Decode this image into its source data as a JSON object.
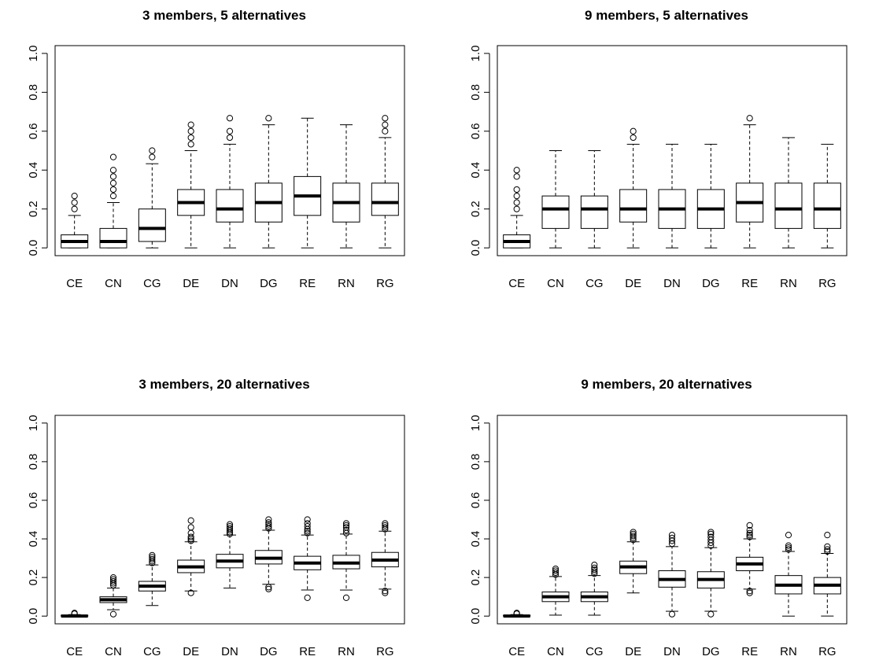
{
  "chart_data": [
    {
      "type": "boxplot",
      "title": "3 members, 5 alternatives",
      "xlabel": "",
      "ylabel": "",
      "ylim": [
        0,
        1
      ],
      "yticks": [
        "0.0",
        "0.2",
        "0.4",
        "0.6",
        "0.8",
        "1.0"
      ],
      "grid": false,
      "categories": [
        "CE",
        "CN",
        "CG",
        "DE",
        "DN",
        "DG",
        "RE",
        "RN",
        "RG"
      ],
      "boxes": [
        {
          "whisker_low": 0.0,
          "q1": 0.0,
          "median": 0.033,
          "q3": 0.067,
          "whisker_high": 0.167,
          "outliers": [
            0.2,
            0.233,
            0.267
          ]
        },
        {
          "whisker_low": 0.0,
          "q1": 0.0,
          "median": 0.033,
          "q3": 0.1,
          "whisker_high": 0.233,
          "outliers": [
            0.267,
            0.3,
            0.333,
            0.367,
            0.4,
            0.467
          ]
        },
        {
          "whisker_low": 0.0,
          "q1": 0.033,
          "median": 0.1,
          "q3": 0.2,
          "whisker_high": 0.433,
          "outliers": [
            0.467,
            0.5
          ]
        },
        {
          "whisker_low": 0.0,
          "q1": 0.167,
          "median": 0.233,
          "q3": 0.3,
          "whisker_high": 0.5,
          "outliers": [
            0.533,
            0.567,
            0.6,
            0.633
          ]
        },
        {
          "whisker_low": 0.0,
          "q1": 0.133,
          "median": 0.2,
          "q3": 0.3,
          "whisker_high": 0.533,
          "outliers": [
            0.567,
            0.6,
            0.667
          ]
        },
        {
          "whisker_low": 0.0,
          "q1": 0.133,
          "median": 0.233,
          "q3": 0.333,
          "whisker_high": 0.633,
          "outliers": [
            0.667
          ]
        },
        {
          "whisker_low": 0.0,
          "q1": 0.167,
          "median": 0.267,
          "q3": 0.367,
          "whisker_high": 0.667,
          "outliers": []
        },
        {
          "whisker_low": 0.0,
          "q1": 0.133,
          "median": 0.233,
          "q3": 0.333,
          "whisker_high": 0.633,
          "outliers": []
        },
        {
          "whisker_low": 0.0,
          "q1": 0.167,
          "median": 0.233,
          "q3": 0.333,
          "whisker_high": 0.567,
          "outliers": [
            0.6,
            0.633,
            0.667
          ]
        }
      ]
    },
    {
      "type": "boxplot",
      "title": "9 members, 5 alternatives",
      "xlabel": "",
      "ylabel": "",
      "ylim": [
        0,
        1
      ],
      "yticks": [
        "0.0",
        "0.2",
        "0.4",
        "0.6",
        "0.8",
        "1.0"
      ],
      "grid": false,
      "categories": [
        "CE",
        "CN",
        "CG",
        "DE",
        "DN",
        "DG",
        "RE",
        "RN",
        "RG"
      ],
      "boxes": [
        {
          "whisker_low": 0.0,
          "q1": 0.0,
          "median": 0.033,
          "q3": 0.067,
          "whisker_high": 0.167,
          "outliers": [
            0.2,
            0.233,
            0.267,
            0.3,
            0.367,
            0.4
          ]
        },
        {
          "whisker_low": 0.0,
          "q1": 0.1,
          "median": 0.2,
          "q3": 0.267,
          "whisker_high": 0.5,
          "outliers": []
        },
        {
          "whisker_low": 0.0,
          "q1": 0.1,
          "median": 0.2,
          "q3": 0.267,
          "whisker_high": 0.5,
          "outliers": []
        },
        {
          "whisker_low": 0.0,
          "q1": 0.133,
          "median": 0.2,
          "q3": 0.3,
          "whisker_high": 0.533,
          "outliers": [
            0.567,
            0.6
          ]
        },
        {
          "whisker_low": 0.0,
          "q1": 0.1,
          "median": 0.2,
          "q3": 0.3,
          "whisker_high": 0.533,
          "outliers": []
        },
        {
          "whisker_low": 0.0,
          "q1": 0.1,
          "median": 0.2,
          "q3": 0.3,
          "whisker_high": 0.533,
          "outliers": []
        },
        {
          "whisker_low": 0.0,
          "q1": 0.133,
          "median": 0.233,
          "q3": 0.333,
          "whisker_high": 0.633,
          "outliers": [
            0.667
          ]
        },
        {
          "whisker_low": 0.0,
          "q1": 0.1,
          "median": 0.2,
          "q3": 0.333,
          "whisker_high": 0.567,
          "outliers": []
        },
        {
          "whisker_low": 0.0,
          "q1": 0.1,
          "median": 0.2,
          "q3": 0.333,
          "whisker_high": 0.533,
          "outliers": []
        }
      ]
    },
    {
      "type": "boxplot",
      "title": "3 members, 20 alternatives",
      "xlabel": "",
      "ylabel": "",
      "ylim": [
        0,
        1
      ],
      "yticks": [
        "0.0",
        "0.2",
        "0.4",
        "0.6",
        "0.8",
        "1.0"
      ],
      "grid": false,
      "categories": [
        "CE",
        "CN",
        "CG",
        "DE",
        "DN",
        "DG",
        "RE",
        "RN",
        "RG"
      ],
      "boxes": [
        {
          "whisker_low": 0.0,
          "q1": 0.0,
          "median": 0.0,
          "q3": 0.004,
          "whisker_high": 0.008,
          "outliers": [
            0.012,
            0.016
          ]
        },
        {
          "whisker_low": 0.033,
          "q1": 0.07,
          "median": 0.085,
          "q3": 0.1,
          "whisker_high": 0.145,
          "outliers": [
            0.01,
            0.16,
            0.17,
            0.18,
            0.19,
            0.2
          ]
        },
        {
          "whisker_low": 0.055,
          "q1": 0.13,
          "median": 0.155,
          "q3": 0.18,
          "whisker_high": 0.265,
          "outliers": [
            0.275,
            0.285,
            0.295,
            0.305,
            0.315
          ]
        },
        {
          "whisker_low": 0.13,
          "q1": 0.225,
          "median": 0.255,
          "q3": 0.29,
          "whisker_high": 0.385,
          "outliers": [
            0.12,
            0.39,
            0.4,
            0.41,
            0.43,
            0.46,
            0.495
          ]
        },
        {
          "whisker_low": 0.145,
          "q1": 0.25,
          "median": 0.285,
          "q3": 0.32,
          "whisker_high": 0.42,
          "outliers": [
            0.425,
            0.435,
            0.445,
            0.455,
            0.465,
            0.475
          ]
        },
        {
          "whisker_low": 0.165,
          "q1": 0.27,
          "median": 0.3,
          "q3": 0.34,
          "whisker_high": 0.445,
          "outliers": [
            0.14,
            0.15,
            0.455,
            0.465,
            0.475,
            0.485,
            0.5
          ]
        },
        {
          "whisker_low": 0.135,
          "q1": 0.24,
          "median": 0.275,
          "q3": 0.31,
          "whisker_high": 0.42,
          "outliers": [
            0.095,
            0.43,
            0.44,
            0.45,
            0.465,
            0.48,
            0.5
          ]
        },
        {
          "whisker_low": 0.135,
          "q1": 0.245,
          "median": 0.275,
          "q3": 0.315,
          "whisker_high": 0.425,
          "outliers": [
            0.095,
            0.43,
            0.445,
            0.46,
            0.47,
            0.48
          ]
        },
        {
          "whisker_low": 0.14,
          "q1": 0.255,
          "median": 0.29,
          "q3": 0.33,
          "whisker_high": 0.44,
          "outliers": [
            0.12,
            0.13,
            0.45,
            0.46,
            0.47,
            0.48
          ]
        }
      ]
    },
    {
      "type": "boxplot",
      "title": "9 members, 20 alternatives",
      "xlabel": "",
      "ylabel": "",
      "ylim": [
        0,
        1
      ],
      "yticks": [
        "0.0",
        "0.2",
        "0.4",
        "0.6",
        "0.8",
        "1.0"
      ],
      "grid": false,
      "categories": [
        "CE",
        "CN",
        "CG",
        "DE",
        "DN",
        "DG",
        "RE",
        "RN",
        "RG"
      ],
      "boxes": [
        {
          "whisker_low": 0.0,
          "q1": 0.0,
          "median": 0.0,
          "q3": 0.004,
          "whisker_high": 0.008,
          "outliers": [
            0.012,
            0.016
          ]
        },
        {
          "whisker_low": 0.005,
          "q1": 0.075,
          "median": 0.1,
          "q3": 0.125,
          "whisker_high": 0.205,
          "outliers": [
            0.215,
            0.225,
            0.235,
            0.245
          ]
        },
        {
          "whisker_low": 0.005,
          "q1": 0.075,
          "median": 0.1,
          "q3": 0.125,
          "whisker_high": 0.21,
          "outliers": [
            0.22,
            0.23,
            0.24,
            0.25,
            0.265
          ]
        },
        {
          "whisker_low": 0.12,
          "q1": 0.22,
          "median": 0.255,
          "q3": 0.285,
          "whisker_high": 0.385,
          "outliers": [
            0.395,
            0.405,
            0.415,
            0.425,
            0.435
          ]
        },
        {
          "whisker_low": 0.025,
          "q1": 0.15,
          "median": 0.19,
          "q3": 0.235,
          "whisker_high": 0.36,
          "outliers": [
            0.01,
            0.375,
            0.39,
            0.405,
            0.42
          ]
        },
        {
          "whisker_low": 0.025,
          "q1": 0.145,
          "median": 0.19,
          "q3": 0.23,
          "whisker_high": 0.355,
          "outliers": [
            0.01,
            0.365,
            0.38,
            0.395,
            0.41,
            0.425,
            0.435
          ]
        },
        {
          "whisker_low": 0.14,
          "q1": 0.235,
          "median": 0.27,
          "q3": 0.305,
          "whisker_high": 0.4,
          "outliers": [
            0.12,
            0.13,
            0.41,
            0.42,
            0.43,
            0.445,
            0.47
          ]
        },
        {
          "whisker_low": 0.0,
          "q1": 0.115,
          "median": 0.16,
          "q3": 0.21,
          "whisker_high": 0.335,
          "outliers": [
            0.345,
            0.355,
            0.365,
            0.42
          ]
        },
        {
          "whisker_low": 0.0,
          "q1": 0.115,
          "median": 0.16,
          "q3": 0.2,
          "whisker_high": 0.325,
          "outliers": [
            0.335,
            0.345,
            0.36,
            0.42
          ]
        }
      ]
    }
  ]
}
